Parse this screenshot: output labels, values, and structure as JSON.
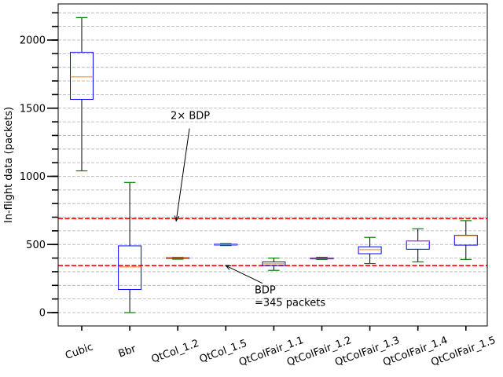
{
  "chart_data": {
    "type": "box",
    "ylabel": "In-flight data (packets)",
    "xlabel": "",
    "title": "",
    "ylim": [
      -100,
      2270
    ],
    "yticks": [
      0,
      500,
      1000,
      1500,
      2000
    ],
    "yticks_minor_step": 100,
    "grid": "horizontal dashed",
    "categories": [
      "Cubic",
      "Bbr",
      "QtCol_1.2",
      "QtCol_1.5",
      "QtColFair_1.1",
      "QtColFair_1.2",
      "QtColFair_1.3",
      "QtColFair_1.4",
      "QtColFair_1.5"
    ],
    "boxes": [
      {
        "whisker_low": 1040,
        "q1": 1565,
        "median": 1730,
        "q3": 1910,
        "whisker_high": 2165
      },
      {
        "whisker_low": 0,
        "q1": 170,
        "median": 335,
        "q3": 490,
        "whisker_high": 955
      },
      {
        "whisker_low": 392,
        "q1": 397,
        "median": 400,
        "q3": 403,
        "whisker_high": 405
      },
      {
        "whisker_low": 492,
        "q1": 496,
        "median": 499,
        "q3": 502,
        "whisker_high": 506
      },
      {
        "whisker_low": 310,
        "q1": 345,
        "median": 358,
        "q3": 372,
        "whisker_high": 400
      },
      {
        "whisker_low": 390,
        "q1": 394,
        "median": 398,
        "q3": 401,
        "whisker_high": 406
      },
      {
        "whisker_low": 360,
        "q1": 432,
        "median": 462,
        "q3": 483,
        "whisker_high": 552
      },
      {
        "whisker_low": 372,
        "q1": 465,
        "median": 524,
        "q3": 526,
        "whisker_high": 615
      },
      {
        "whisker_low": 390,
        "q1": 495,
        "median": 565,
        "q3": 568,
        "whisker_high": 675
      }
    ],
    "reference_lines": [
      {
        "value": 690,
        "color": "#ff0000"
      },
      {
        "value": 345,
        "color": "#ff0000"
      }
    ],
    "annotations": [
      {
        "text": "2× BDP",
        "text_at": [
          1.85,
          1420
        ],
        "arrow_to": [
          2.0,
          690
        ]
      },
      {
        "text": "BDP\n=345 packets",
        "text_at": [
          3.6,
          140
        ],
        "arrow_to": [
          3.0,
          345
        ]
      }
    ],
    "colors": {
      "box": "#0000ff",
      "median": "#ff7f0e",
      "whisker": "#000000",
      "cap": "#008000",
      "grid": "#b0b0b0",
      "reference": "#ff0000"
    }
  }
}
